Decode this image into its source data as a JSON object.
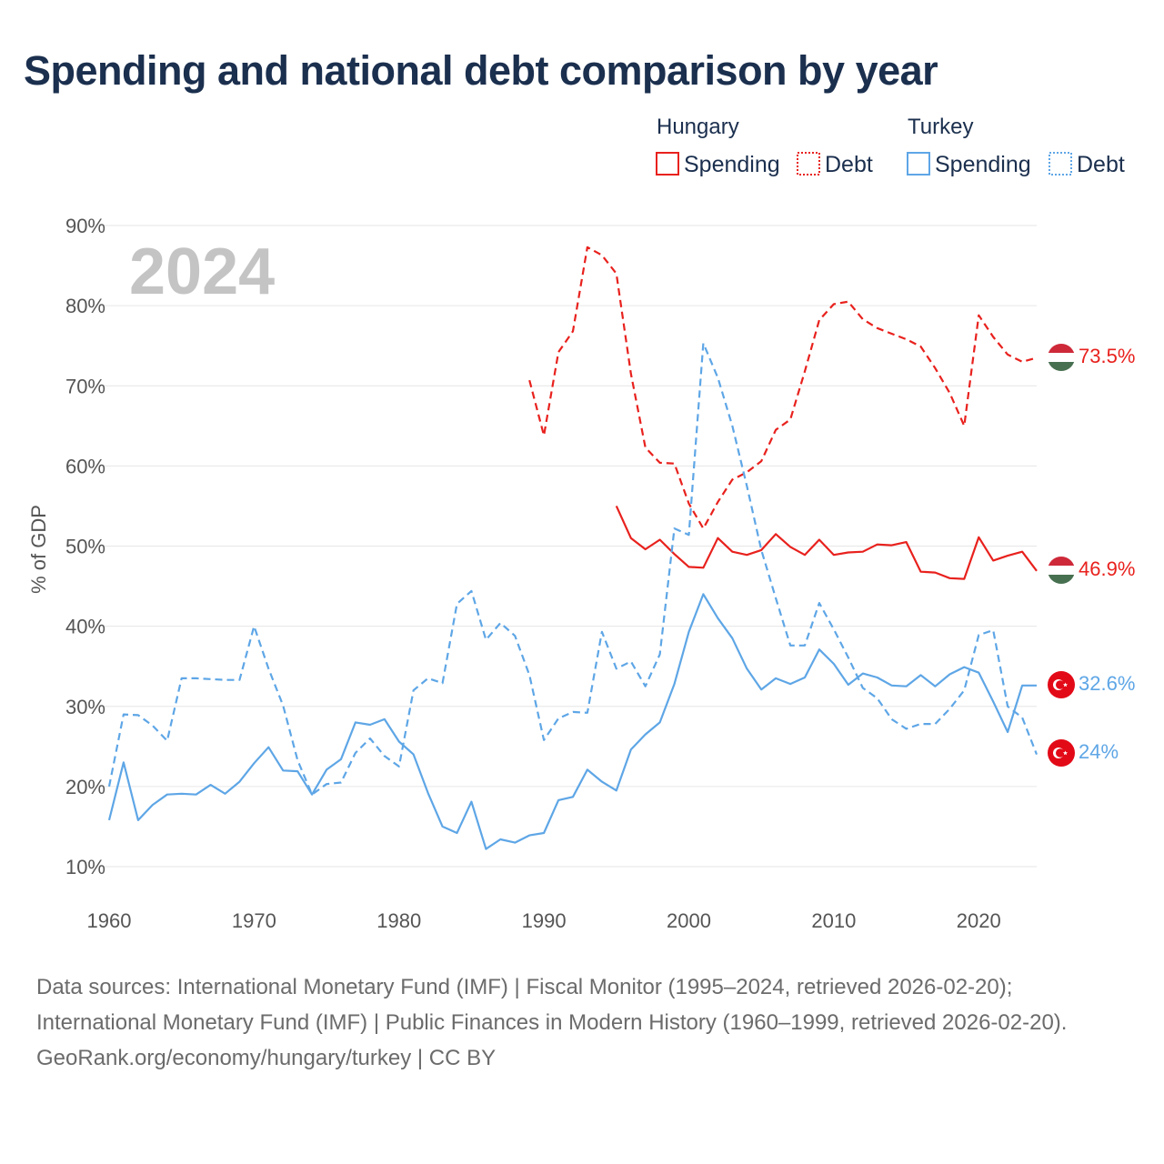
{
  "title": "Spending and national debt comparison by year",
  "footer": {
    "sources": "Data sources: International Monetary Fund (IMF) | Fiscal Monitor (1995–2024, retrieved 2026-02-20); International Monetary Fund (IMF) | Public Finances in Modern History (1960–1999, retrieved 2026-02-20).",
    "credit": "GeoRank.org/economy/hungary/turkey | CC BY"
  },
  "colors": {
    "hungary": "#e8211d",
    "turkey": "#5ea6e6",
    "grid": "#e6e6e6",
    "text": "#1b2f4e"
  },
  "chart_data": {
    "type": "line",
    "title": "Spending and national debt comparison by year",
    "year_label": "2024",
    "ylabel": "% of GDP",
    "xlabel": "",
    "xlim": [
      1960,
      2024
    ],
    "ylim": [
      10,
      90
    ],
    "x_ticks": [
      "1960",
      "1970",
      "1980",
      "1990",
      "2000",
      "2010",
      "2020"
    ],
    "y_ticks": [
      "10%",
      "20%",
      "30%",
      "40%",
      "50%",
      "60%",
      "70%",
      "80%",
      "90%"
    ],
    "grid": true,
    "legend_position": "top-right",
    "legend": {
      "groups": [
        {
          "country": "Hungary",
          "items": [
            {
              "label": "Spending",
              "style": "solid"
            },
            {
              "label": "Debt",
              "style": "dotted"
            }
          ]
        },
        {
          "country": "Turkey",
          "items": [
            {
              "label": "Spending",
              "style": "solid"
            },
            {
              "label": "Debt",
              "style": "dotted"
            }
          ]
        }
      ]
    },
    "series": [
      {
        "name": "Hungary Spending",
        "country": "hungary",
        "dashed": false,
        "end_label": "46.9%",
        "x": [
          1995,
          1996,
          1997,
          1998,
          1999,
          2000,
          2001,
          2002,
          2003,
          2004,
          2005,
          2006,
          2007,
          2008,
          2009,
          2010,
          2011,
          2012,
          2013,
          2014,
          2015,
          2016,
          2017,
          2018,
          2019,
          2020,
          2021,
          2022,
          2023,
          2024
        ],
        "values": [
          55.0,
          51.0,
          49.6,
          50.8,
          49.0,
          47.4,
          47.3,
          51.0,
          49.3,
          48.9,
          49.5,
          51.5,
          49.9,
          48.9,
          50.8,
          48.9,
          49.2,
          49.3,
          50.2,
          50.1,
          50.5,
          46.8,
          46.7,
          46.0,
          45.9,
          51.1,
          48.2,
          48.8,
          49.3,
          46.9
        ]
      },
      {
        "name": "Hungary Debt",
        "country": "hungary",
        "dashed": true,
        "end_label": "73.5%",
        "x": [
          1989,
          1990,
          1991,
          1992,
          1993,
          1994,
          1995,
          1996,
          1997,
          1998,
          1999,
          2000,
          2001,
          2002,
          2003,
          2004,
          2005,
          2006,
          2007,
          2008,
          2009,
          2010,
          2011,
          2012,
          2013,
          2014,
          2015,
          2016,
          2017,
          2018,
          2019,
          2020,
          2021,
          2022,
          2023,
          2024
        ],
        "values": [
          70.7,
          63.8,
          74.2,
          76.8,
          87.3,
          86.3,
          84.0,
          71.5,
          62.3,
          60.4,
          60.3,
          55.3,
          52.2,
          55.5,
          58.3,
          59.2,
          60.6,
          64.5,
          65.8,
          71.8,
          78.2,
          80.2,
          80.5,
          78.3,
          77.2,
          76.5,
          75.8,
          74.9,
          72.2,
          69.1,
          65.0,
          78.8,
          76.1,
          73.9,
          73.0,
          73.5
        ]
      },
      {
        "name": "Turkey Spending",
        "country": "turkey",
        "dashed": false,
        "end_label": "32.6%",
        "x": [
          1960,
          1961,
          1962,
          1963,
          1964,
          1965,
          1966,
          1967,
          1968,
          1969,
          1970,
          1971,
          1972,
          1973,
          1974,
          1975,
          1976,
          1977,
          1978,
          1979,
          1980,
          1981,
          1982,
          1983,
          1984,
          1985,
          1986,
          1987,
          1988,
          1989,
          1990,
          1991,
          1992,
          1993,
          1994,
          1995,
          1996,
          1997,
          1998,
          1999,
          2000,
          2001,
          2002,
          2003,
          2004,
          2005,
          2006,
          2007,
          2008,
          2009,
          2010,
          2011,
          2012,
          2013,
          2014,
          2015,
          2016,
          2017,
          2018,
          2019,
          2020,
          2021,
          2022,
          2023,
          2024
        ],
        "values": [
          15.8,
          23.0,
          15.8,
          17.7,
          19.0,
          19.1,
          19.0,
          20.2,
          19.1,
          20.6,
          22.9,
          24.9,
          22.0,
          21.9,
          19.0,
          22.1,
          23.4,
          28.0,
          27.7,
          28.4,
          25.6,
          24.0,
          19.2,
          15.0,
          14.2,
          18.1,
          12.2,
          13.4,
          13.0,
          13.9,
          14.2,
          18.3,
          18.7,
          22.1,
          20.6,
          19.5,
          24.6,
          26.5,
          28.0,
          32.8,
          39.3,
          44.0,
          41.0,
          38.5,
          34.7,
          32.1,
          33.5,
          32.8,
          33.6,
          37.1,
          35.3,
          32.7,
          34.1,
          33.6,
          32.6,
          32.5,
          33.9,
          32.5,
          34.0,
          34.9,
          34.2,
          30.6,
          26.8,
          32.6,
          32.6
        ]
      },
      {
        "name": "Turkey Debt",
        "country": "turkey",
        "dashed": true,
        "end_label": "24%",
        "x": [
          1960,
          1961,
          1962,
          1963,
          1964,
          1965,
          1966,
          1967,
          1968,
          1969,
          1970,
          1971,
          1972,
          1973,
          1974,
          1975,
          1976,
          1977,
          1978,
          1979,
          1980,
          1981,
          1982,
          1983,
          1984,
          1985,
          1986,
          1987,
          1988,
          1989,
          1990,
          1991,
          1992,
          1993,
          1994,
          1995,
          1996,
          1997,
          1998,
          1999,
          2000,
          2001,
          2002,
          2003,
          2004,
          2005,
          2006,
          2007,
          2008,
          2009,
          2010,
          2011,
          2012,
          2013,
          2014,
          2015,
          2016,
          2017,
          2018,
          2019,
          2020,
          2021,
          2022,
          2023,
          2024
        ],
        "values": [
          20.0,
          29.0,
          28.9,
          27.6,
          25.7,
          33.5,
          33.5,
          33.4,
          33.3,
          33.3,
          40.0,
          34.7,
          30.1,
          23.3,
          19.0,
          20.3,
          20.5,
          24.2,
          26.0,
          23.8,
          22.5,
          32.0,
          33.5,
          32.9,
          42.8,
          44.4,
          38.3,
          40.4,
          38.8,
          33.9,
          25.8,
          28.5,
          29.3,
          29.2,
          39.3,
          34.7,
          35.6,
          32.5,
          36.5,
          52.2,
          51.4,
          75.3,
          71.0,
          65.0,
          57.5,
          49.5,
          43.5,
          37.6,
          37.6,
          42.9,
          39.6,
          36.1,
          32.3,
          31.0,
          28.4,
          27.2,
          27.8,
          27.8,
          29.7,
          32.0,
          38.9,
          39.5,
          30.0,
          28.6,
          24.0
        ]
      }
    ]
  }
}
